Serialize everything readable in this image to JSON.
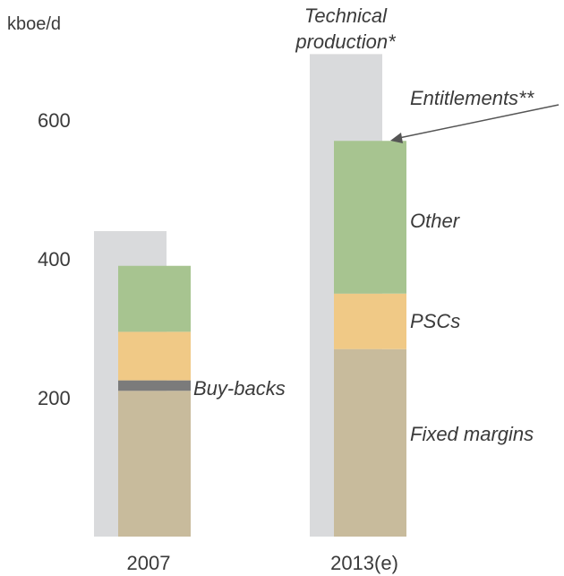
{
  "chart_data": {
    "type": "bar",
    "ylabel": "kboe/d",
    "yticks": [
      200,
      400,
      600
    ],
    "ylim": [
      0,
      700
    ],
    "categories": [
      "2007",
      "2013(e)"
    ],
    "technical_production": [
      440,
      695
    ],
    "series": [
      {
        "name": "Fixed margins",
        "values": [
          210,
          270
        ],
        "color": "#c8bb9c"
      },
      {
        "name": "Buy-backs",
        "values": [
          15,
          0
        ],
        "color": "#7b7b7b"
      },
      {
        "name": "PSCs",
        "values": [
          70,
          80
        ],
        "color": "#f0c986"
      },
      {
        "name": "Other",
        "values": [
          95,
          220
        ],
        "color": "#a7c490"
      }
    ],
    "annotations": {
      "technical_line1": "Technical",
      "technical_line2": "production*",
      "entitlements": "Entitlements**",
      "other": "Other",
      "pscs": "PSCs",
      "buy_backs": "Buy-backs",
      "fixed_margins": "Fixed margins"
    },
    "colors": {
      "technical": "#d9dadc",
      "arrow": "#555555"
    }
  }
}
